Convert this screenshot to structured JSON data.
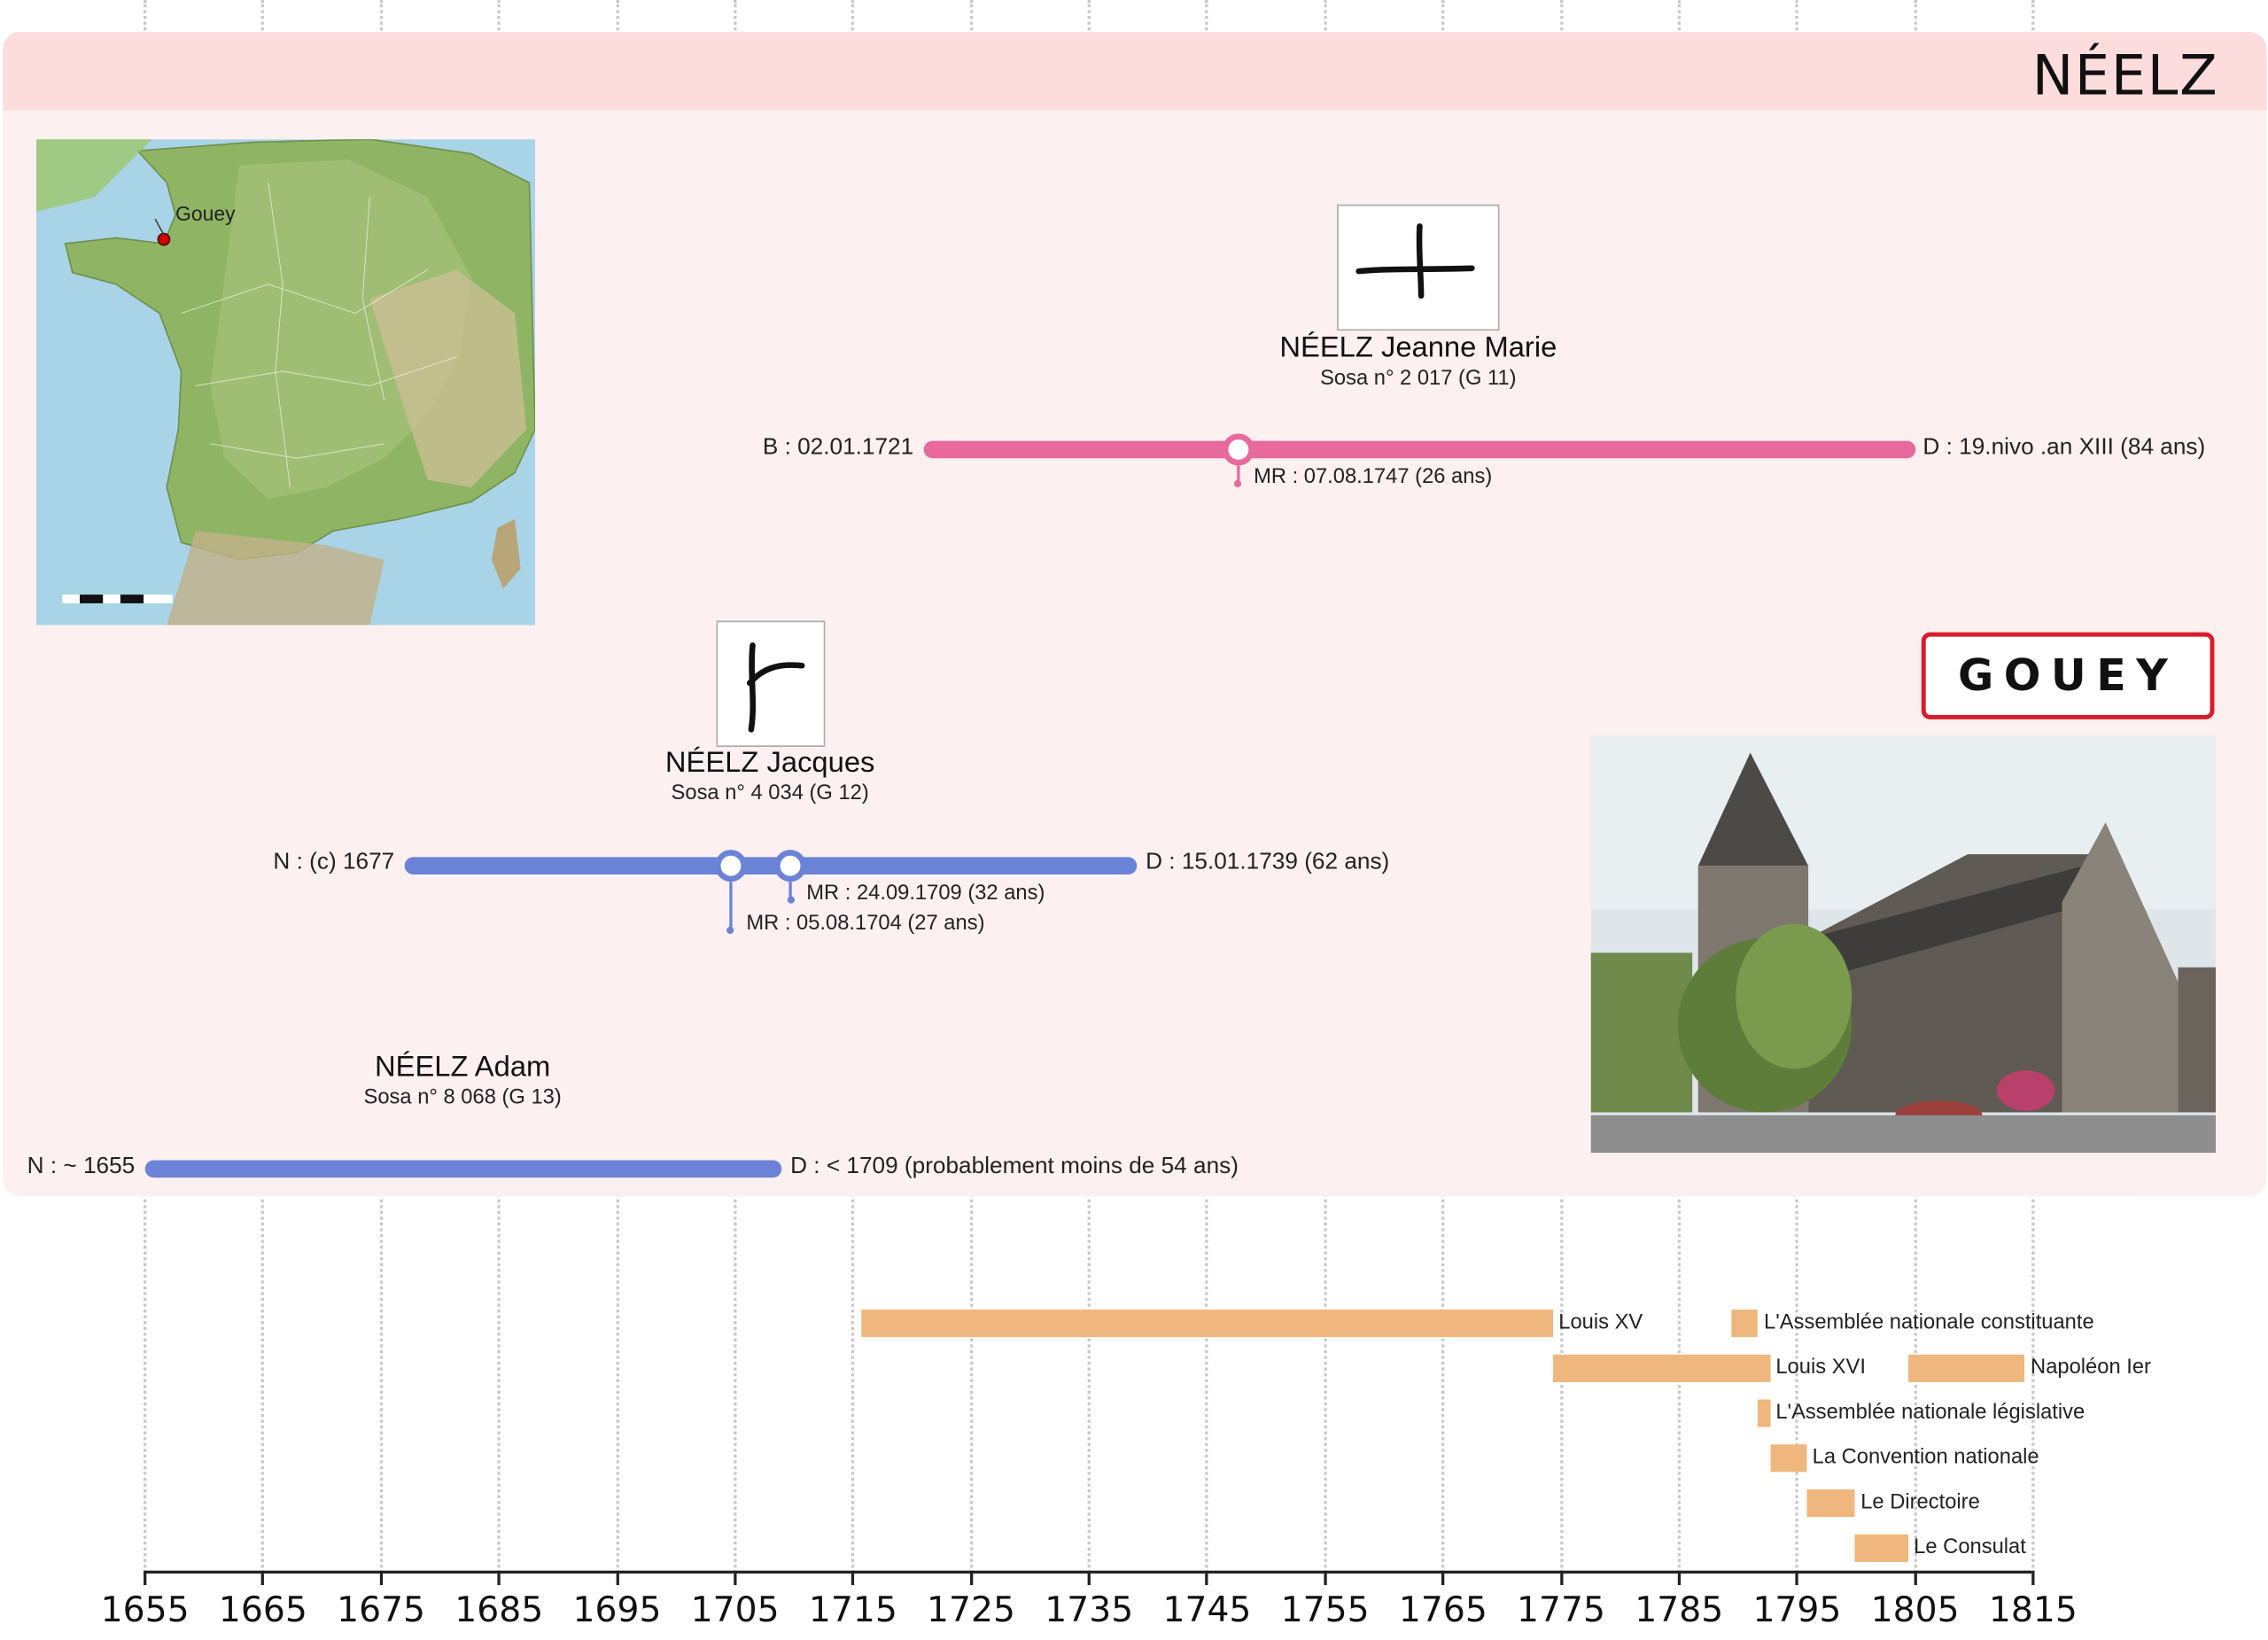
{
  "family_name": "NÉELZ",
  "map_label": "Gouey",
  "village_sign": "GOUEY",
  "colors": {
    "female": "#e8699b",
    "male": "#6b83d6",
    "reign": "#efb77d",
    "panel": "#fdf0f0",
    "band": "#fcdcdc"
  },
  "persons": [
    {
      "name": "NÉELZ Jeanne Marie",
      "sosa": "Sosa n° 2 017 (G 11)",
      "start_label": "B : 02.01.1721",
      "end_label": "D : 19.nivo .an XIII (84 ans)",
      "start_year": 1721.0,
      "end_year": 1805.0,
      "gender": "female",
      "marriages": [
        {
          "year": 1747.6,
          "label": "MR : 07.08.1747 (26 ans)"
        }
      ]
    },
    {
      "name": "NÉELZ Jacques",
      "sosa": "Sosa n° 4 034 (G 12)",
      "start_label": "N : (c) 1677",
      "end_label": "D : 15.01.1739 (62 ans)",
      "start_year": 1677.0,
      "end_year": 1739.0,
      "gender": "male",
      "marriages": [
        {
          "year": 1704.6,
          "label": "MR : 05.08.1704 (27 ans)"
        },
        {
          "year": 1709.7,
          "label": "MR : 24.09.1709 (32 ans)"
        }
      ]
    },
    {
      "name": "NÉELZ Adam",
      "sosa": "Sosa n° 8 068 (G 13)",
      "start_label": "N : ~ 1655",
      "end_label": "D : < 1709 (probablement moins de 54 ans)",
      "start_year": 1655.0,
      "end_year": 1709.0,
      "gender": "male",
      "marriages": []
    }
  ],
  "chart_data": {
    "type": "timeline",
    "x_ticks": [
      1655,
      1665,
      1675,
      1685,
      1695,
      1705,
      1715,
      1725,
      1735,
      1745,
      1755,
      1765,
      1775,
      1785,
      1795,
      1805,
      1815
    ],
    "xlim": [
      1655,
      1815
    ],
    "grid": true,
    "reigns": [
      {
        "label": "Louis XV",
        "start": 1715.7,
        "end": 1774.3
      },
      {
        "label": "L'Assemblée nationale constituante",
        "start": 1789.5,
        "end": 1791.7
      },
      {
        "label": "Louis XVI",
        "start": 1774.3,
        "end": 1792.7
      },
      {
        "label": "Napoléon Ier",
        "start": 1804.4,
        "end": 1814.3
      },
      {
        "label": "L'Assemblée nationale législative",
        "start": 1791.7,
        "end": 1792.7
      },
      {
        "label": "La Convention nationale",
        "start": 1792.7,
        "end": 1795.8
      },
      {
        "label": "Le Directoire",
        "start": 1795.8,
        "end": 1799.9
      },
      {
        "label": "Le Consulat",
        "start": 1799.9,
        "end": 1804.4
      }
    ]
  }
}
